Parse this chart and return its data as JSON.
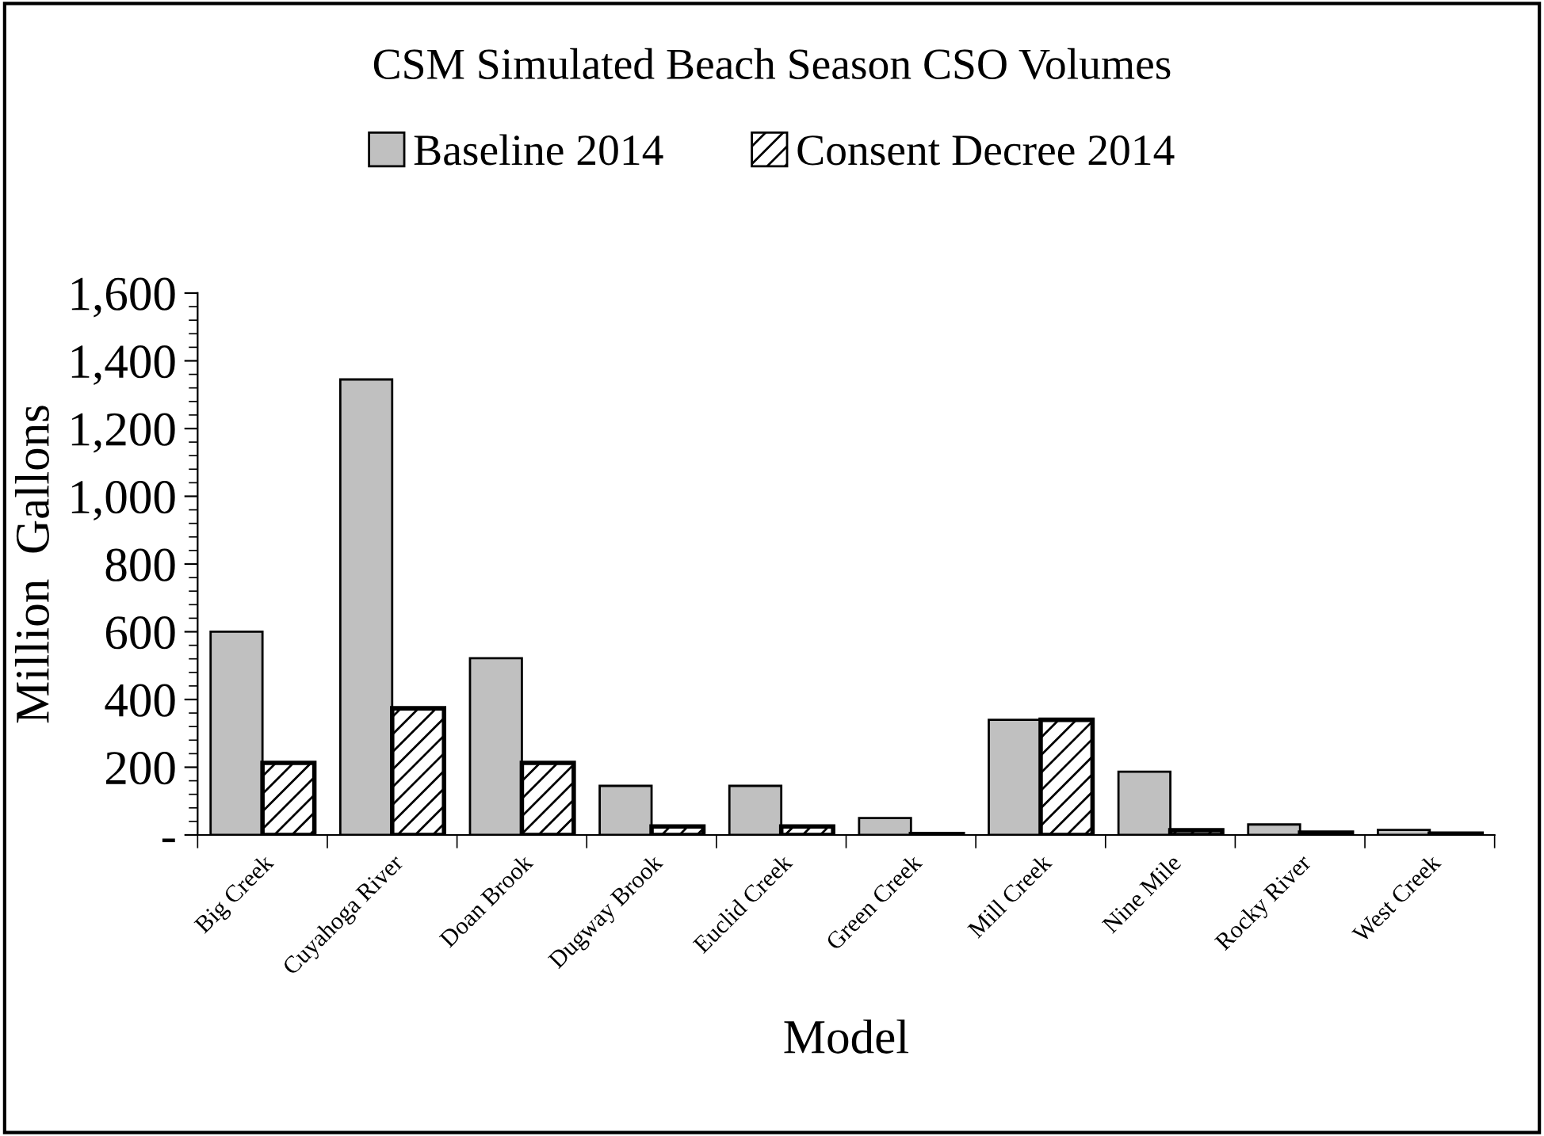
{
  "chart_data": {
    "type": "bar",
    "title": "CSM Simulated Beach Season CSO Volumes",
    "xlabel": "Model",
    "ylabel": "Million  Gallons",
    "categories": [
      "Big Creek",
      "Cuyahoga River",
      "Doan Brook",
      "Dugway Brook",
      "Euclid Creek",
      "Green Creek",
      "Mill Creek",
      "Nine Mile",
      "Rocky River",
      "West Creek"
    ],
    "series": [
      {
        "name": "Baseline 2014",
        "color": "#c0c0c0",
        "values": [
          600,
          1345,
          522,
          145,
          145,
          50,
          340,
          187,
          31,
          15
        ]
      },
      {
        "name": "Consent Decree 2014",
        "color": "#000000",
        "values": [
          213,
          374,
          213,
          25,
          25,
          3,
          340,
          14,
          7,
          4
        ]
      }
    ],
    "ylim": [
      0,
      1600
    ],
    "yticks": [
      {
        "value": 0,
        "label": "-"
      },
      200,
      400,
      600,
      800,
      {
        "value": 1000,
        "label": "1,000"
      },
      {
        "value": 1200,
        "label": "1,200"
      },
      {
        "value": 1400,
        "label": "1,400"
      },
      {
        "value": 1600,
        "label": "1,600"
      }
    ],
    "grid": false,
    "legend": "top"
  }
}
